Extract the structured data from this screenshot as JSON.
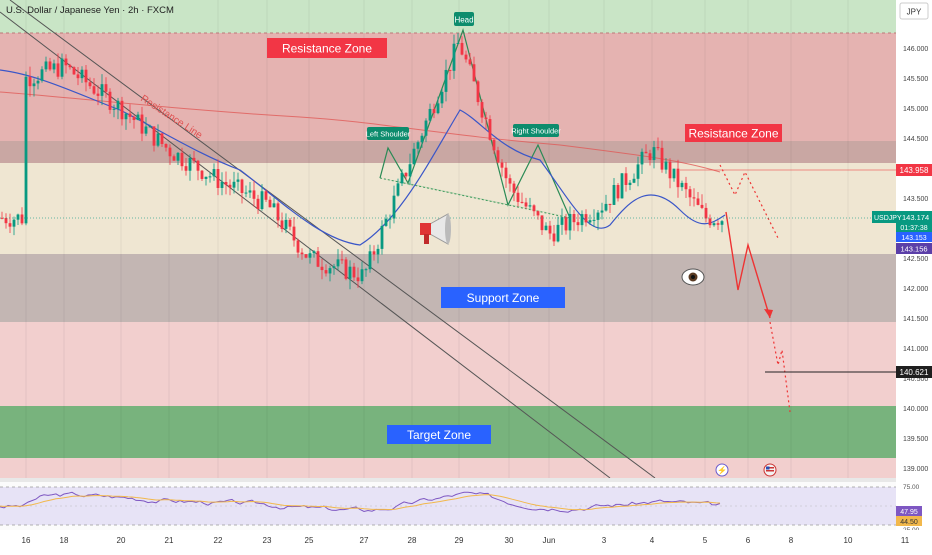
{
  "header": {
    "title": "U.S. Dollar / Japanese Yen · 2h · FXCM",
    "currency_button": "JPY"
  },
  "price_axis": {
    "ticks": [
      "146.000",
      "145.500",
      "145.000",
      "144.500",
      "144.000",
      "143.500",
      "143.000",
      "142.500",
      "142.000",
      "141.500",
      "141.000",
      "140.500",
      "140.000",
      "139.500",
      "139.000"
    ]
  },
  "price_labels": {
    "resistance_level": "143.958",
    "symbol": "USDJPY",
    "last_price": "143.174",
    "countdown": "01:37:38",
    "ma_fast": "143.153",
    "ma_slow": "143.156",
    "target_level": "140.621"
  },
  "rsi_panel": {
    "ticks": [
      "75.00",
      "25.00"
    ],
    "rsi_value": "47.95",
    "ma_value": "44.50"
  },
  "time_axis": {
    "labels": [
      "16",
      "18",
      "20",
      "21",
      "22",
      "23",
      "25",
      "27",
      "28",
      "29",
      "30",
      "Jun",
      "3",
      "4",
      "5",
      "6",
      "8",
      "10",
      "11"
    ]
  },
  "annotations": {
    "resistance_zone_top": "Resistance Zone",
    "resistance_zone_right": "Resistance Zone",
    "support_zone": "Support Zone",
    "target_zone": "Target Zone",
    "head": "Head",
    "left_shoulder": "Left Shoulder",
    "right_shoulder": "Right Shoulder",
    "resistance_line": "Resistance Line"
  },
  "colors": {
    "bull": "#089981",
    "bear": "#f23645",
    "resistance_zone": "#e8a4a6",
    "support_zone": "#b6aaa9",
    "target_zone": "#63a46b",
    "neutral_band": "#efe6d2",
    "label_red": "#f23645",
    "label_blue": "#2962ff",
    "label_green": "#0d8c6d"
  },
  "chart_data": {
    "type": "candlestick",
    "symbol": "USDJPY",
    "timeframe": "2h",
    "y_range": [
      138.9,
      146.4
    ],
    "zones": [
      {
        "name": "Resistance Zone",
        "from": 144.1,
        "to": 146.2
      },
      {
        "name": "Resistance Zone",
        "from": 144.1,
        "to": 144.4
      },
      {
        "name": "Support Zone",
        "from": 141.48,
        "to": 142.55
      },
      {
        "name": "Target Zone",
        "from": 139.45,
        "to": 140.05
      }
    ],
    "levels": [
      143.958,
      140.621
    ],
    "last_price": 143.174,
    "pattern": "Head and Shoulders",
    "close_path": [
      {
        "x": "16",
        "y": 145.5
      },
      {
        "x": "18",
        "y": 145.7
      },
      {
        "x": "20",
        "y": 145.0
      },
      {
        "x": "21",
        "y": 144.3
      },
      {
        "x": "22",
        "y": 143.8
      },
      {
        "x": "23",
        "y": 143.4
      },
      {
        "x": "25",
        "y": 142.5
      },
      {
        "x": "27",
        "y": 142.2
      },
      {
        "x": "28",
        "y": 144.2
      },
      {
        "x": "29",
        "y": 146.1
      },
      {
        "x": "30",
        "y": 143.7
      },
      {
        "x": "Jun",
        "y": 142.9
      },
      {
        "x": "3",
        "y": 143.4
      },
      {
        "x": "4",
        "y": 144.3
      },
      {
        "x": "5",
        "y": 143.17
      }
    ],
    "rsi": {
      "value": 47.95,
      "ma": 44.5,
      "bands": [
        75,
        25
      ]
    }
  }
}
